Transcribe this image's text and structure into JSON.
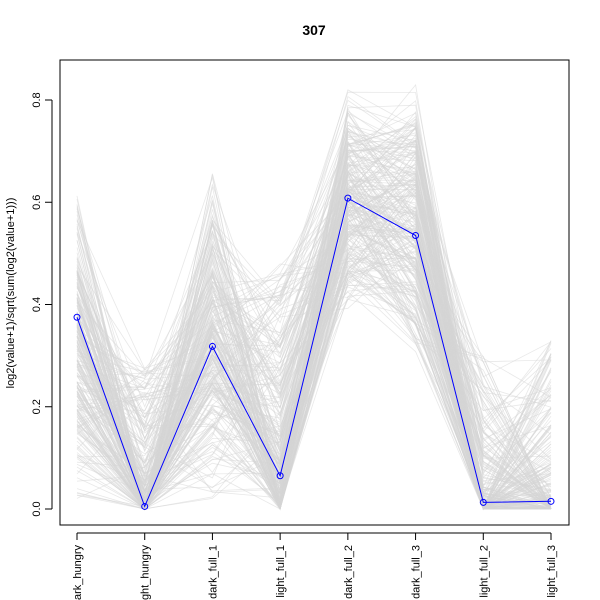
{
  "chart_data": {
    "type": "line",
    "title": "307",
    "xlabel": "",
    "ylabel": "log2(value+1)/sqrt(sum(log2(value+1)))",
    "categories": [
      "dark_hungry",
      "light_hungry",
      "dark_full_1",
      "light_full_1",
      "dark_full_2",
      "dark_full_3",
      "light_full_2",
      "light_full_3"
    ],
    "ylim": [
      0,
      0.8
    ],
    "yticks": [
      0.0,
      0.2,
      0.4,
      0.6,
      0.8
    ],
    "ytick_labels": [
      "0.0",
      "0.2",
      "0.4",
      "0.6",
      "0.8"
    ],
    "grid": false,
    "highlight": {
      "values": [
        0.375,
        0.005,
        0.318,
        0.065,
        0.608,
        0.535,
        0.013,
        0.015
      ],
      "color": "#0000ff"
    },
    "background": {
      "color": "#d3d3d3",
      "count": 260,
      "value_ranges": [
        [
          0.0,
          0.64
        ],
        [
          0.0,
          0.28
        ],
        [
          0.0,
          0.68
        ],
        [
          0.0,
          0.48
        ],
        [
          0.38,
          0.84
        ],
        [
          0.28,
          0.85
        ],
        [
          0.0,
          0.3
        ],
        [
          0.0,
          0.33
        ]
      ]
    }
  }
}
